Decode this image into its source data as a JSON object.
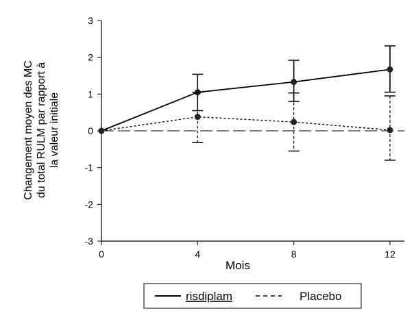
{
  "chart_data": {
    "type": "line",
    "xlabel": "Mois",
    "ylabel_lines": [
      "Changement moyen des MC",
      "du total RULM par rapport à",
      "la valeur initiale"
    ],
    "x": [
      0,
      4,
      8,
      12
    ],
    "xticks": [
      "0",
      "4",
      "8",
      "12"
    ],
    "yticks": [
      "3",
      "2",
      "1",
      "0",
      "-1",
      "-2",
      "-3"
    ],
    "xlim": [
      0,
      12.6
    ],
    "ylim": [
      -3,
      3
    ],
    "reference_line": 0,
    "legend_position": "bottom-center",
    "series": [
      {
        "name": "risdiplam",
        "line_style": "solid",
        "values": [
          0,
          1.05,
          1.33,
          1.67
        ],
        "error_low": [
          null,
          0.55,
          0.8,
          1.05
        ],
        "error_high": [
          null,
          1.54,
          1.92,
          2.31
        ]
      },
      {
        "name": "Placebo",
        "line_style": "dashed",
        "values": [
          0,
          0.38,
          0.24,
          0.02
        ],
        "error_low": [
          null,
          -0.32,
          -0.55,
          -0.8
        ],
        "error_high": [
          null,
          1.05,
          1.03,
          0.95
        ]
      }
    ]
  }
}
